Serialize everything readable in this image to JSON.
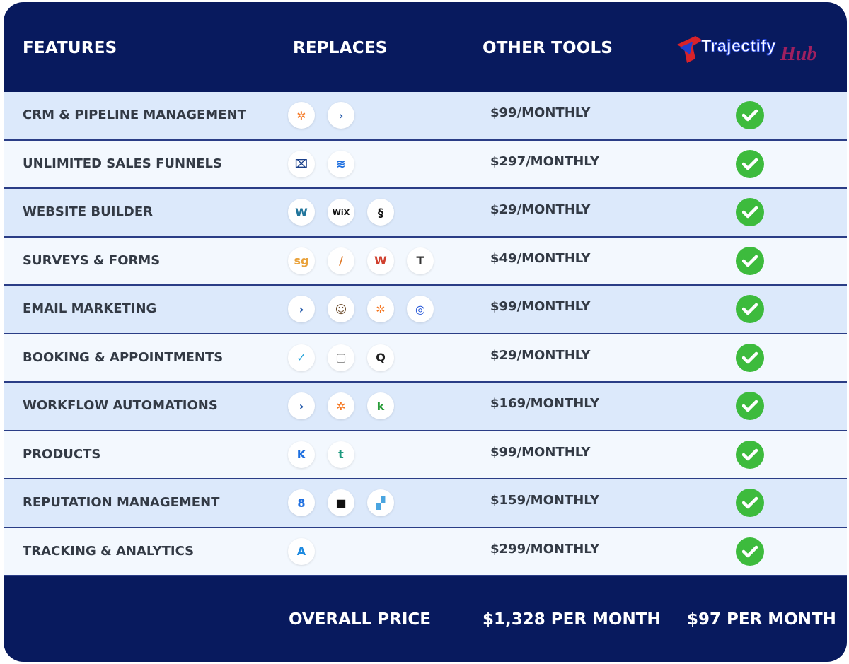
{
  "header": {
    "features": "FEATURES",
    "replaces": "REPLACES",
    "other_tools": "OTHER TOOLS",
    "logo_text": "Trajectify",
    "logo_script": "Hub"
  },
  "colors": {
    "navy": "#081a5e",
    "row_odd": "#dce9fb",
    "row_even": "#f3f8fe",
    "check": "#3dbb3d"
  },
  "rows": [
    {
      "feature": "CRM & PIPELINE MANAGEMENT",
      "price": "$99/MONTHLY",
      "icons": [
        {
          "name": "hubspot-icon",
          "glyph": "✲",
          "color": "#f57722"
        },
        {
          "name": "activecampaign-icon",
          "glyph": "›",
          "color": "#1e55a8"
        }
      ]
    },
    {
      "feature": "UNLIMITED SALES FUNNELS",
      "price": "$297/MONTHLY",
      "icons": [
        {
          "name": "clickfunnels-icon",
          "glyph": "⌧",
          "color": "#1a3f8a"
        },
        {
          "name": "leadpages-icon",
          "glyph": "≋",
          "color": "#1e6fe0"
        }
      ]
    },
    {
      "feature": "WEBSITE BUILDER",
      "price": "$29/MONTHLY",
      "icons": [
        {
          "name": "wordpress-icon",
          "glyph": "W",
          "color": "#21759b"
        },
        {
          "name": "wix-icon",
          "glyph": "WiX",
          "color": "#111"
        },
        {
          "name": "squarespace-icon",
          "glyph": "§",
          "color": "#111"
        }
      ]
    },
    {
      "feature": "SURVEYS & FORMS",
      "price": "$49/MONTHLY",
      "icons": [
        {
          "name": "surveygizmo-icon",
          "glyph": "sg",
          "color": "#e9a23b"
        },
        {
          "name": "formstack-icon",
          "glyph": "/",
          "color": "#e07b2a"
        },
        {
          "name": "wufoo-icon",
          "glyph": "W",
          "color": "#d0402e"
        },
        {
          "name": "typeform-icon",
          "glyph": "T",
          "color": "#333"
        }
      ]
    },
    {
      "feature": "EMAIL MARKETING",
      "price": "$99/MONTHLY",
      "icons": [
        {
          "name": "activecampaign-icon",
          "glyph": "›",
          "color": "#1e55a8"
        },
        {
          "name": "mailchimp-icon",
          "glyph": "☺",
          "color": "#6b4a2a"
        },
        {
          "name": "hubspot-icon",
          "glyph": "✲",
          "color": "#f57722"
        },
        {
          "name": "constant-contact-icon",
          "glyph": "◎",
          "color": "#1b4fd6"
        }
      ]
    },
    {
      "feature": "BOOKING & APPOINTMENTS",
      "price": "$29/MONTHLY",
      "icons": [
        {
          "name": "acuity-icon",
          "glyph": "✓",
          "color": "#1fa0d8"
        },
        {
          "name": "calendly-icon",
          "glyph": "▢",
          "color": "#888"
        },
        {
          "name": "appointment-icon",
          "glyph": "Q",
          "color": "#222"
        }
      ]
    },
    {
      "feature": "WORKFLOW AUTOMATIONS",
      "price": "$169/MONTHLY",
      "icons": [
        {
          "name": "activecampaign-icon",
          "glyph": "›",
          "color": "#1e55a8"
        },
        {
          "name": "hubspot-icon",
          "glyph": "✲",
          "color": "#f57722"
        },
        {
          "name": "keap-icon",
          "glyph": "k",
          "color": "#2a9d3a"
        }
      ]
    },
    {
      "feature": "PRODUCTS",
      "price": "$99/MONTHLY",
      "icons": [
        {
          "name": "kajabi-icon",
          "glyph": "K",
          "color": "#1d6fe0"
        },
        {
          "name": "teachable-icon",
          "glyph": "t",
          "color": "#1e9a7f"
        }
      ]
    },
    {
      "feature": "REPUTATION MANAGEMENT",
      "price": "$159/MONTHLY",
      "icons": [
        {
          "name": "birdeye-icon",
          "glyph": "8",
          "color": "#1e6fe0"
        },
        {
          "name": "podium-icon",
          "glyph": "■",
          "color": "#111"
        },
        {
          "name": "reputation-icon",
          "glyph": "▞",
          "color": "#4aa5e0"
        }
      ]
    },
    {
      "feature": "TRACKING & ANALYTICS",
      "price": "$299/MONTHLY",
      "icons": [
        {
          "name": "analytics-icon",
          "glyph": "A",
          "color": "#1e8ae0"
        }
      ]
    }
  ],
  "footer": {
    "label": "OVERALL PRICE",
    "other_total": "$1,328 PER MONTH",
    "hub_total": "$97 PER MONTH"
  }
}
